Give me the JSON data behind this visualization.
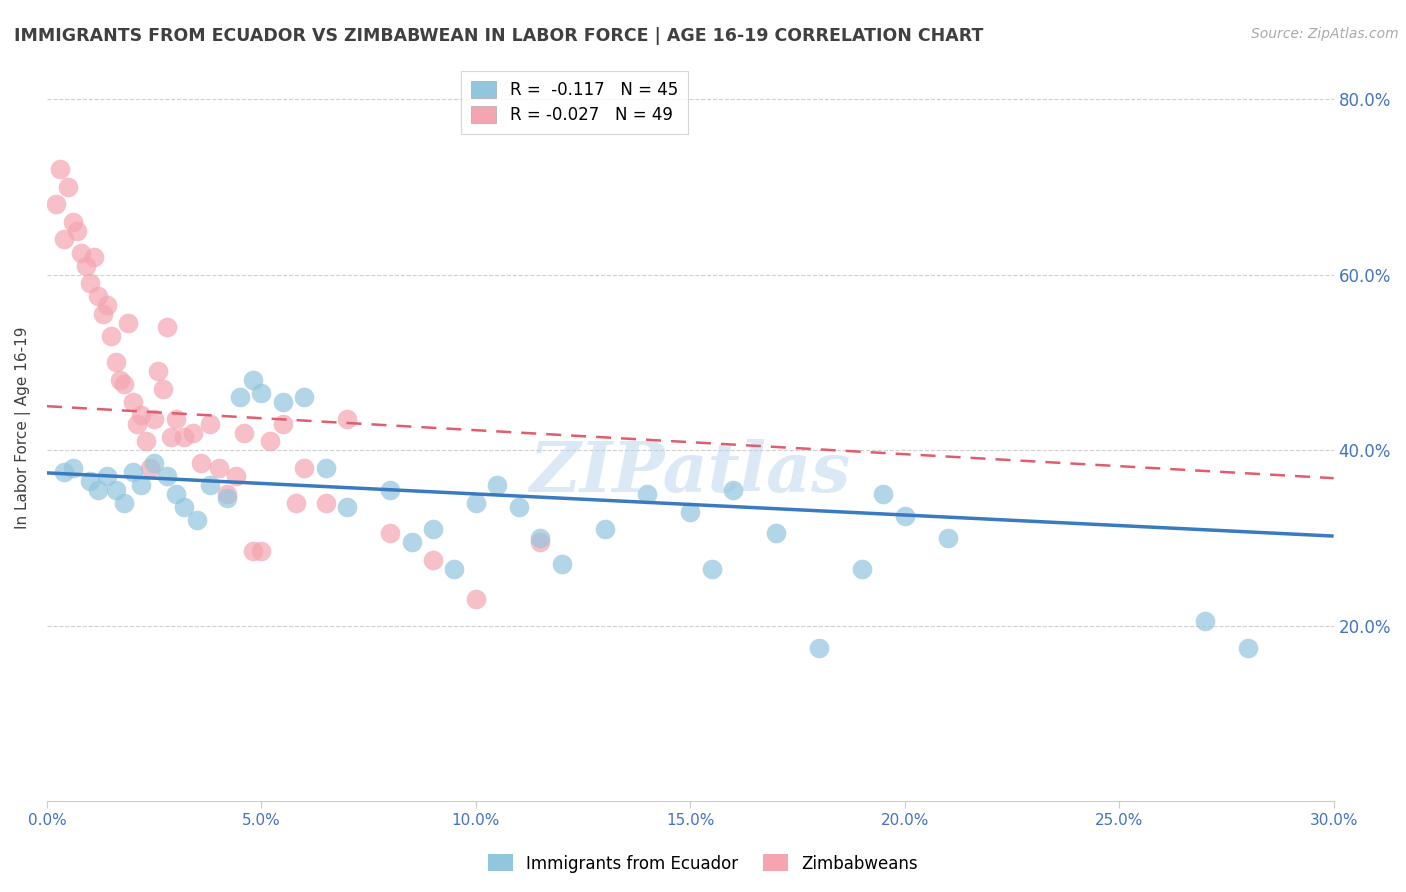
{
  "title": "IMMIGRANTS FROM ECUADOR VS ZIMBABWEAN IN LABOR FORCE | AGE 16-19 CORRELATION CHART",
  "source": "Source: ZipAtlas.com",
  "ylabel": "In Labor Force | Age 16-19",
  "xlim": [
    0.0,
    0.3
  ],
  "ylim": [
    0.0,
    0.85
  ],
  "ytick_labels_right": [
    "20.0%",
    "40.0%",
    "60.0%",
    "80.0%"
  ],
  "ytick_vals_right": [
    0.2,
    0.4,
    0.6,
    0.8
  ],
  "xtick_labels": [
    "0.0%",
    "5.0%",
    "10.0%",
    "15.0%",
    "20.0%",
    "25.0%",
    "30.0%"
  ],
  "xtick_vals": [
    0.0,
    0.05,
    0.1,
    0.15,
    0.2,
    0.25,
    0.3
  ],
  "legend_r_ecuador": "-0.117",
  "legend_n_ecuador": "45",
  "legend_r_zimbabwe": "-0.027",
  "legend_n_zimbabwe": "49",
  "ecuador_color": "#92c5de",
  "zimbabwe_color": "#f4a5b0",
  "ecuador_line_color": "#3a7abf",
  "zimbabwe_line_color": "#e05c6e",
  "background_color": "#ffffff",
  "grid_color": "#d0d0d0",
  "title_color": "#404040",
  "axis_label_color": "#4472c4",
  "watermark": "ZIPatlas",
  "ecuador_points_x": [
    0.004,
    0.006,
    0.01,
    0.012,
    0.014,
    0.016,
    0.018,
    0.02,
    0.022,
    0.025,
    0.028,
    0.03,
    0.032,
    0.035,
    0.038,
    0.042,
    0.045,
    0.048,
    0.05,
    0.055,
    0.06,
    0.065,
    0.07,
    0.08,
    0.085,
    0.09,
    0.095,
    0.1,
    0.105,
    0.11,
    0.115,
    0.12,
    0.13,
    0.14,
    0.15,
    0.155,
    0.16,
    0.17,
    0.18,
    0.19,
    0.195,
    0.2,
    0.21,
    0.27,
    0.28
  ],
  "ecuador_points_y": [
    0.375,
    0.38,
    0.365,
    0.355,
    0.37,
    0.355,
    0.34,
    0.375,
    0.36,
    0.385,
    0.37,
    0.35,
    0.335,
    0.32,
    0.36,
    0.345,
    0.46,
    0.48,
    0.465,
    0.455,
    0.46,
    0.38,
    0.335,
    0.355,
    0.295,
    0.31,
    0.265,
    0.34,
    0.36,
    0.335,
    0.3,
    0.27,
    0.31,
    0.35,
    0.33,
    0.265,
    0.355,
    0.305,
    0.175,
    0.265,
    0.35,
    0.325,
    0.3,
    0.205,
    0.175
  ],
  "zimbabwe_points_x": [
    0.002,
    0.003,
    0.004,
    0.005,
    0.006,
    0.007,
    0.008,
    0.009,
    0.01,
    0.011,
    0.012,
    0.013,
    0.014,
    0.015,
    0.016,
    0.017,
    0.018,
    0.019,
    0.02,
    0.021,
    0.022,
    0.023,
    0.024,
    0.025,
    0.026,
    0.027,
    0.028,
    0.029,
    0.03,
    0.032,
    0.034,
    0.036,
    0.038,
    0.04,
    0.042,
    0.044,
    0.046,
    0.048,
    0.05,
    0.052,
    0.055,
    0.058,
    0.06,
    0.065,
    0.07,
    0.08,
    0.09,
    0.1,
    0.115
  ],
  "zimbabwe_points_y": [
    0.68,
    0.72,
    0.64,
    0.7,
    0.66,
    0.65,
    0.625,
    0.61,
    0.59,
    0.62,
    0.575,
    0.555,
    0.565,
    0.53,
    0.5,
    0.48,
    0.475,
    0.545,
    0.455,
    0.43,
    0.44,
    0.41,
    0.38,
    0.435,
    0.49,
    0.47,
    0.54,
    0.415,
    0.435,
    0.415,
    0.42,
    0.385,
    0.43,
    0.38,
    0.35,
    0.37,
    0.42,
    0.285,
    0.285,
    0.41,
    0.43,
    0.34,
    0.38,
    0.34,
    0.435,
    0.305,
    0.275,
    0.23,
    0.295
  ]
}
